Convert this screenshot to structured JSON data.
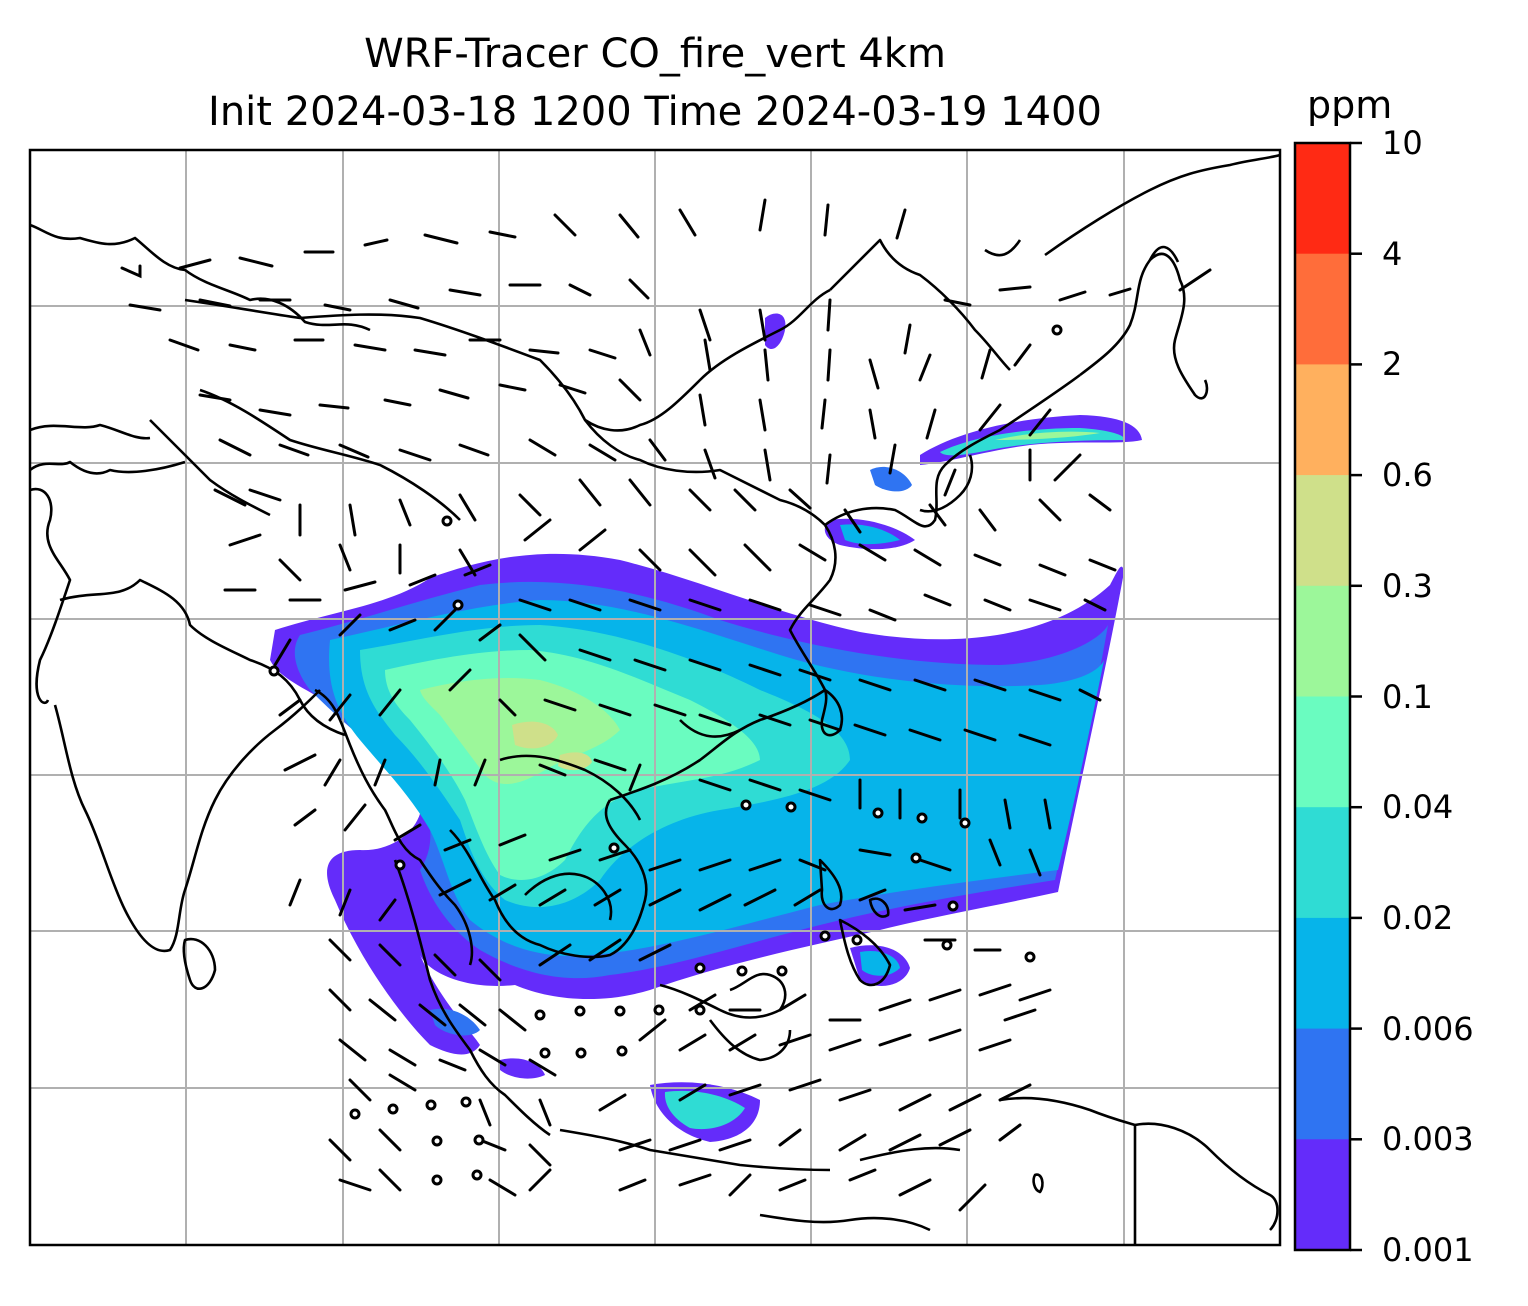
{
  "title": {
    "line1": "WRF-Tracer CO_fire_vert 4km",
    "line2": "Init 2024-03-18 1200 Time 2024-03-19 1400"
  },
  "map": {
    "variable": "CO_fire_vert",
    "overlay": "wind barbs",
    "gridlines": true,
    "coastline_color": "#000000",
    "grid_color": "#b0b0b0"
  },
  "colorbar": {
    "unit": "ppm",
    "ticks": [
      "10",
      "4",
      "2",
      "0.6",
      "0.3",
      "0.1",
      "0.04",
      "0.02",
      "0.006",
      "0.003",
      "0.001"
    ],
    "colors_top_to_bottom": [
      "#ff2a14",
      "#ff6d3a",
      "#ffb05e",
      "#cfe08a",
      "#9cf79a",
      "#6afcc0",
      "#2fdcd4",
      "#06b4ea",
      "#2f74f2",
      "#642cfa"
    ]
  }
}
